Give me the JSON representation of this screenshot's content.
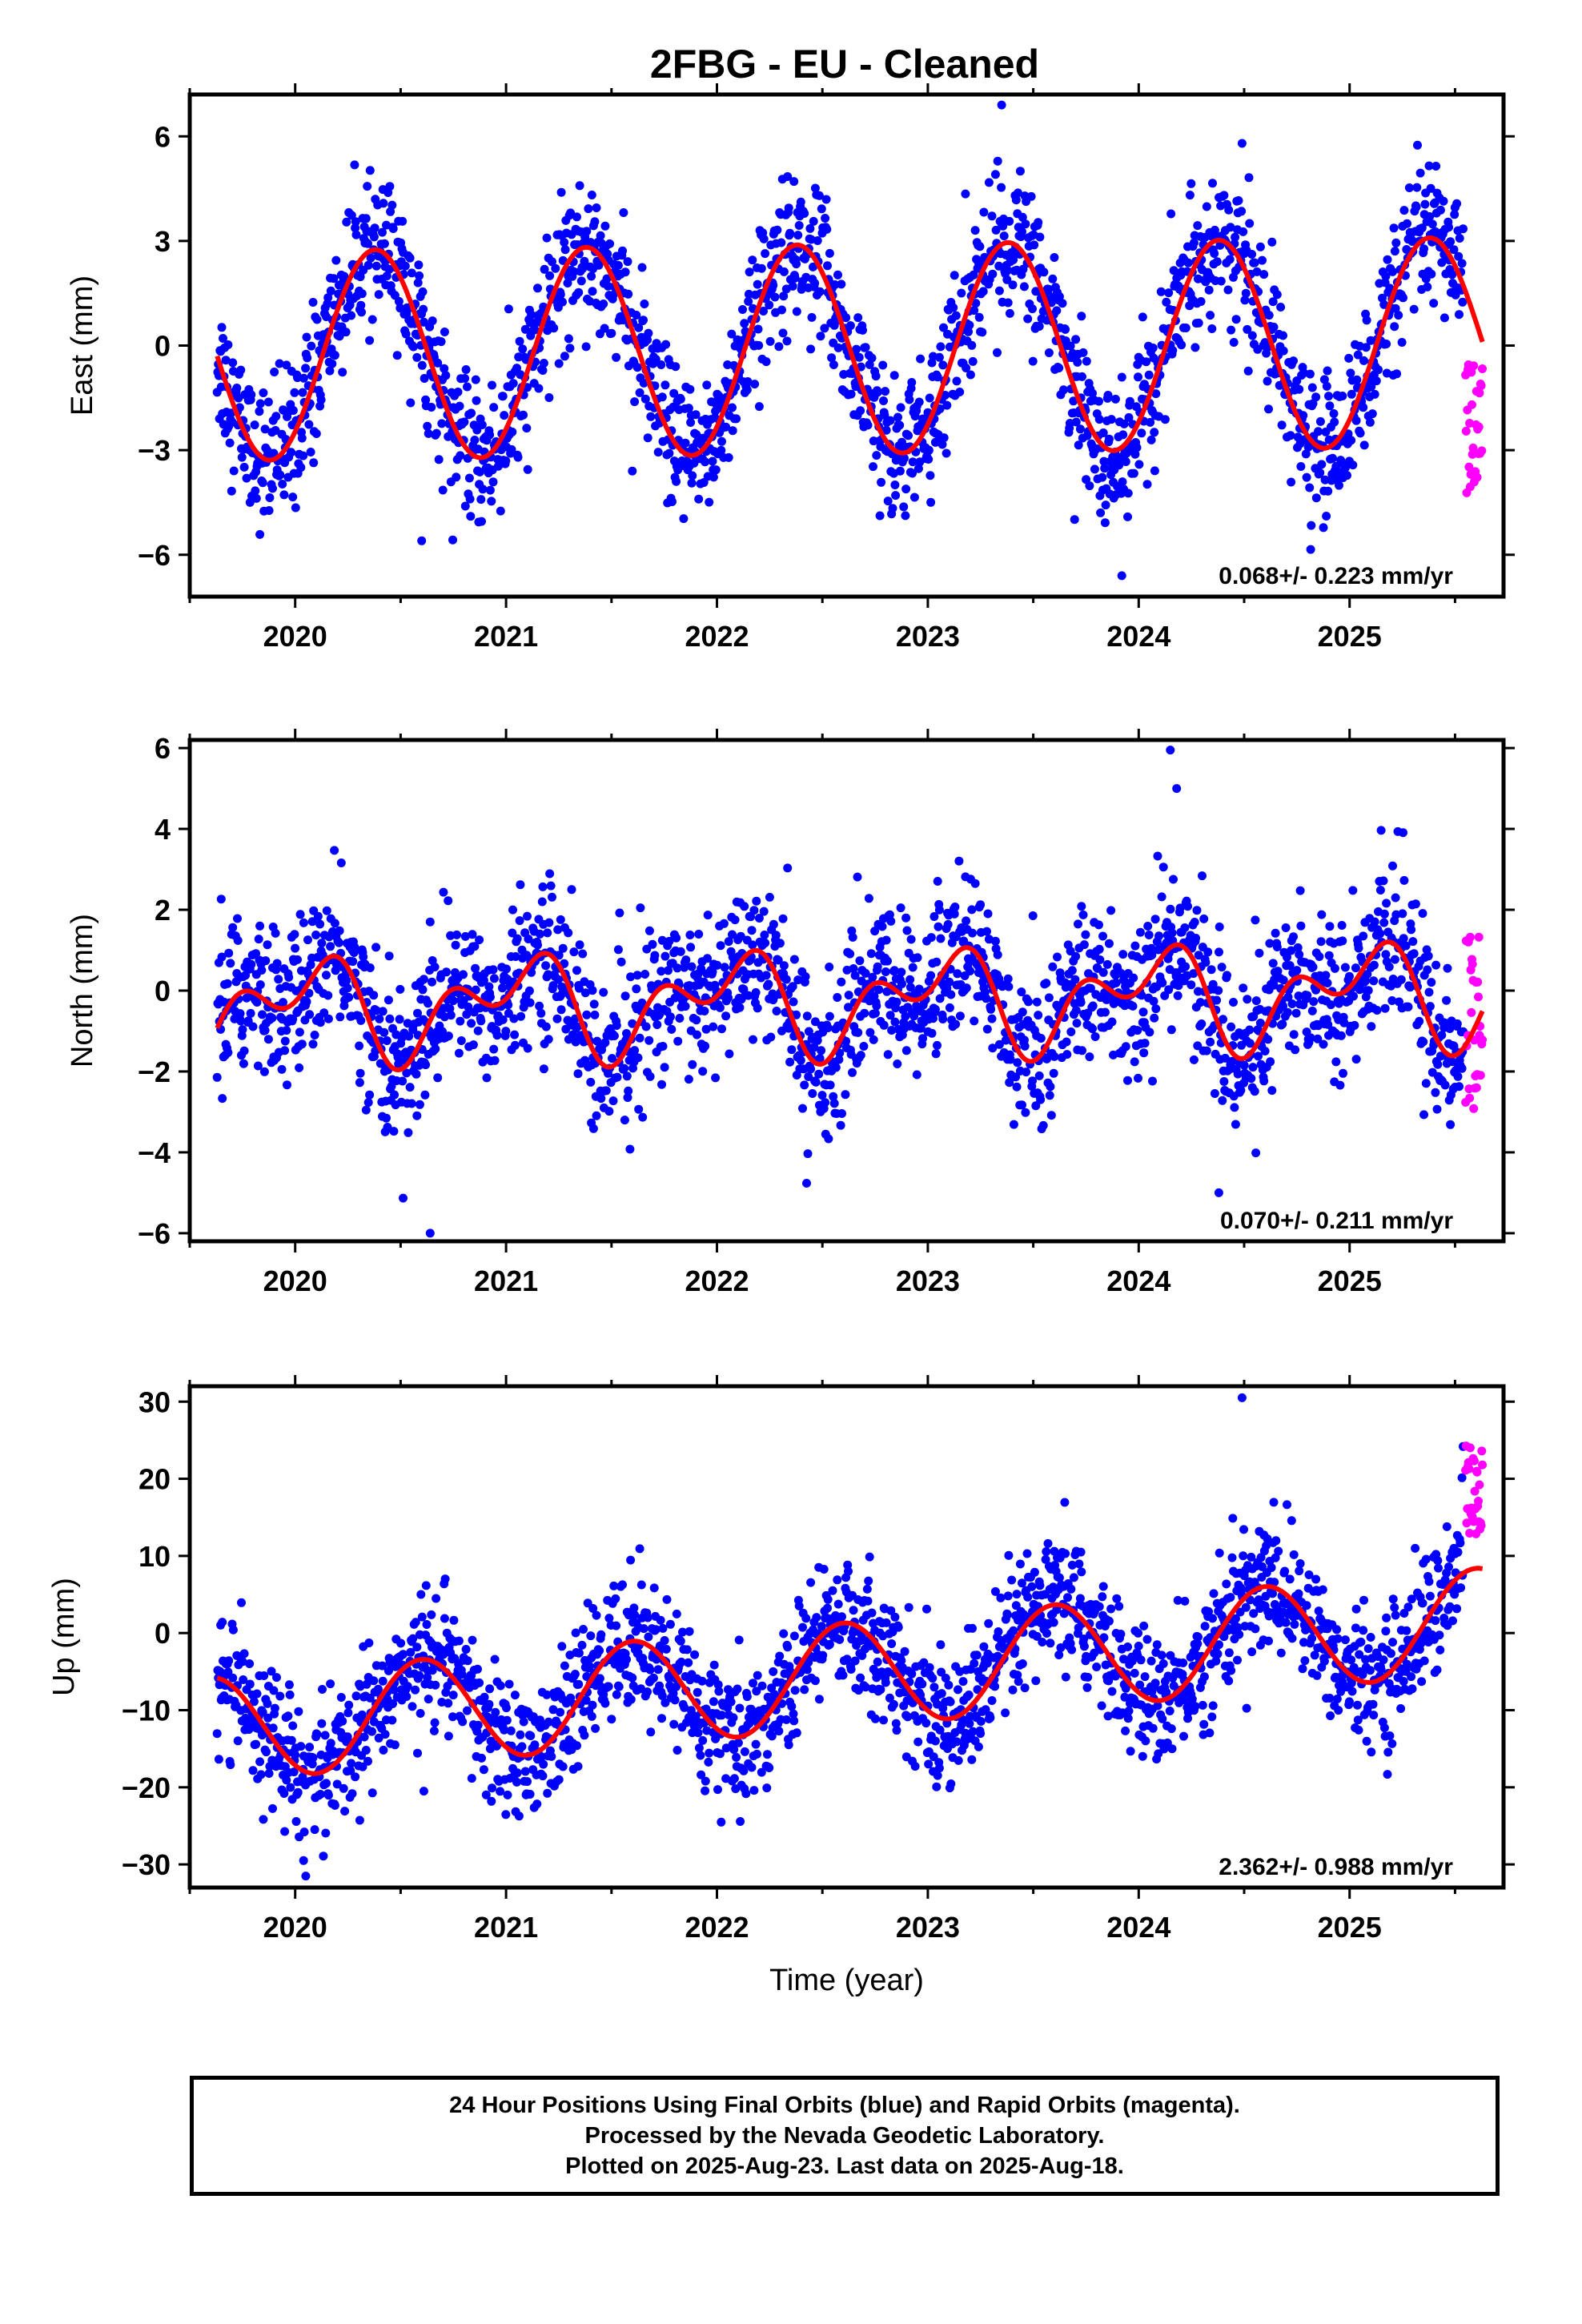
{
  "colors": {
    "final_orbits": "#0000ff",
    "rapid_orbits": "#ff00ff",
    "fit_line": "#ff0000",
    "frame": "#000000"
  },
  "chart_data": [
    {
      "type": "scatter",
      "title": "2FBG  - EU - Cleaned",
      "xlabel": "",
      "ylabel": "East (mm)",
      "xlim": [
        2019.5,
        2025.73
      ],
      "ylim": [
        -7.2,
        7.2
      ],
      "x_ticks": [
        "2020",
        "2021",
        "2022",
        "2023",
        "2024",
        "2025"
      ],
      "y_ticks": [
        "6",
        "3",
        "0",
        "−3",
        "−6"
      ],
      "annotation": "0.068+/- 0.223 mm/yr",
      "series": [
        {
          "style": "blue points",
          "x_range": [
            2019.63,
            2025.54
          ],
          "model": {
            "offset": -0.1,
            "trend": 0.068,
            "annual_amplitude": 3.0,
            "annual_peak": 2020.38,
            "semiannual_amplitude": 0.0,
            "scatter": 1.0,
            "outliers": [
              [
                2020.6,
                -5.6
              ],
              [
                2023.35,
                6.9
              ],
              [
                2023.92,
                -6.6
              ],
              [
                2024.49,
                5.8
              ]
            ]
          }
        },
        {
          "style": "magenta points",
          "x_range": [
            2025.55,
            2025.63
          ],
          "model": {
            "center": -2.4,
            "spread": 1.9
          }
        },
        {
          "style": "red line",
          "x_range": [
            2019.63,
            2025.63
          ],
          "model": {
            "offset": -0.1,
            "trend": 0.068,
            "annual_amplitude": 3.0,
            "annual_peak": 2020.38,
            "semiannual_amplitude": 0.0
          }
        }
      ]
    },
    {
      "type": "scatter",
      "title": "",
      "xlabel": "",
      "ylabel": "North (mm)",
      "xlim": [
        2019.5,
        2025.73
      ],
      "ylim": [
        -6.2,
        6.2
      ],
      "x_ticks": [
        "2020",
        "2021",
        "2022",
        "2023",
        "2024",
        "2025"
      ],
      "y_ticks": [
        "6",
        "4",
        "2",
        "0",
        "−2",
        "−4",
        "−6"
      ],
      "annotation": "0.070+/- 0.211 mm/yr",
      "series": [
        {
          "style": "blue points",
          "x_range": [
            2019.63,
            2025.54
          ],
          "model": {
            "offset": -0.25,
            "trend": 0.07,
            "annual_amplitude": 0.9,
            "annual_peak": 2020.05,
            "semiannual_amplitude": 0.75,
            "semiannual_peak": 2020.22,
            "scatter": 0.95,
            "outliers": [
              [
                2020.64,
                -6.0
              ],
              [
                2024.15,
                5.95
              ],
              [
                2024.18,
                5.0
              ],
              [
                2024.38,
                -5.0
              ]
            ]
          }
        },
        {
          "style": "magenta points",
          "x_range": [
            2025.55,
            2025.63
          ],
          "model": {
            "center": -0.8,
            "spread": 2.2
          }
        },
        {
          "style": "red line",
          "x_range": [
            2019.63,
            2025.63
          ],
          "model": {
            "offset": -0.25,
            "trend": 0.07,
            "annual_amplitude": 0.9,
            "annual_peak": 2020.05,
            "semiannual_amplitude": 0.75,
            "semiannual_peak": 2020.22
          }
        }
      ]
    },
    {
      "type": "scatter",
      "title": "",
      "xlabel": "Time (year)",
      "ylabel": "Up (mm)",
      "xlim": [
        2019.5,
        2025.73
      ],
      "ylim": [
        -33,
        32
      ],
      "x_ticks": [
        "2020",
        "2021",
        "2022",
        "2023",
        "2024",
        "2025"
      ],
      "y_ticks": [
        "30",
        "20",
        "10",
        "0",
        "−10",
        "−20",
        "−30"
      ],
      "annotation": "2.362+/- 0.988 mm/yr",
      "series": [
        {
          "style": "blue points",
          "x_range": [
            2019.63,
            2025.54
          ],
          "model": {
            "offset": -5.5,
            "trend": 2.362,
            "annual_amplitude": 6.8,
            "annual_peak": 2020.6,
            "semiannual_amplitude": 0.0,
            "scatter": 4.3,
            "outliers": [
              [
                2020.05,
                -31.5
              ],
              [
                2020.04,
                -29.5
              ],
              [
                2024.49,
                30.5
              ],
              [
                2020.61,
                -20.5
              ]
            ]
          }
        },
        {
          "style": "magenta points",
          "x_range": [
            2025.55,
            2025.63
          ],
          "model": {
            "center": 18.5,
            "spread": 6.0
          }
        },
        {
          "style": "red line",
          "x_range": [
            2019.63,
            2025.63
          ],
          "model": {
            "offset": -5.5,
            "trend": 2.362,
            "annual_amplitude": 6.8,
            "annual_peak": 2020.6,
            "semiannual_amplitude": 0.0
          }
        }
      ]
    }
  ],
  "footnote": {
    "line1": "24 Hour Positions Using Final Orbits (blue) and Rapid Orbits (magenta).",
    "line2": "Processed by the Nevada Geodetic Laboratory.",
    "line3": "Plotted on 2025-Aug-23. Last data on 2025-Aug-18."
  }
}
